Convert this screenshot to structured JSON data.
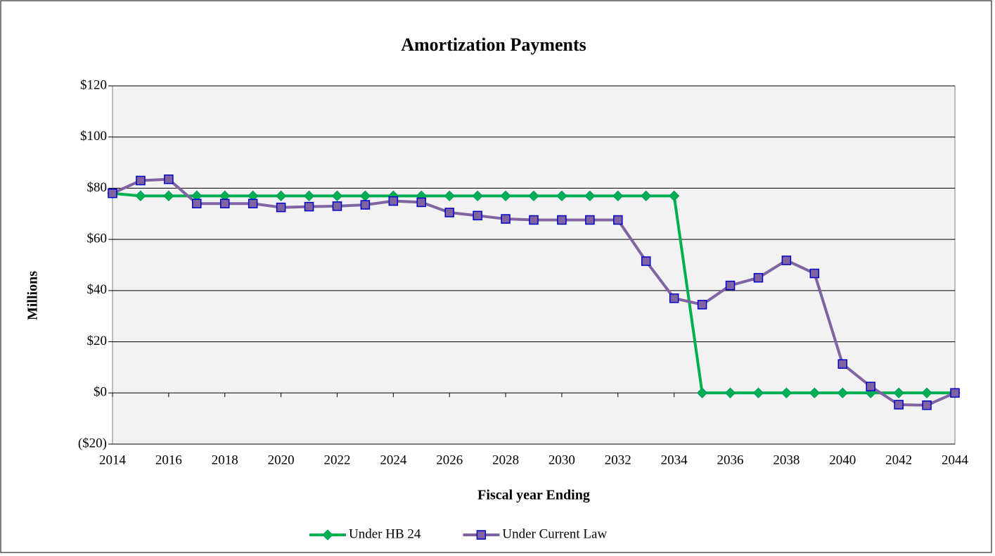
{
  "chart_data": {
    "type": "line",
    "title": "Amortization Payments",
    "xlabel": "Fiscal year Ending",
    "ylabel": "Millions",
    "x": [
      2014,
      2015,
      2016,
      2017,
      2018,
      2019,
      2020,
      2021,
      2022,
      2023,
      2024,
      2025,
      2026,
      2027,
      2028,
      2029,
      2030,
      2031,
      2032,
      2033,
      2034,
      2035,
      2036,
      2037,
      2038,
      2039,
      2040,
      2041,
      2042,
      2043,
      2044
    ],
    "series": [
      {
        "name": "Under HB 24",
        "color": "#00b050",
        "marker": "diamond",
        "values": [
          78,
          77,
          77,
          77,
          77,
          77,
          77,
          77,
          77,
          77,
          77,
          77,
          77,
          77,
          77,
          77,
          77,
          77,
          77,
          77,
          77,
          0,
          0,
          0,
          0,
          0,
          0,
          0,
          0,
          0,
          0
        ]
      },
      {
        "name": "Under Current Law",
        "color": "#8064a2",
        "marker": "square",
        "values": [
          78,
          83,
          83.5,
          74,
          74,
          74,
          72.5,
          72.8,
          73,
          73.5,
          75,
          74.5,
          70.5,
          69.3,
          68,
          67.6,
          67.6,
          67.6,
          67.6,
          51.5,
          37,
          34.5,
          42,
          45,
          51.8,
          46.7,
          11.3,
          2.5,
          -4.6,
          -4.8,
          0
        ]
      }
    ],
    "xlim": [
      2014,
      2044
    ],
    "xticks": [
      2014,
      2016,
      2018,
      2020,
      2022,
      2024,
      2026,
      2028,
      2030,
      2032,
      2034,
      2036,
      2038,
      2040,
      2042,
      2044
    ],
    "ylim": [
      -20,
      120
    ],
    "yticks": [
      {
        "value": -20,
        "label": "($20)"
      },
      {
        "value": 0,
        "label": "$0"
      },
      {
        "value": 20,
        "label": "$20"
      },
      {
        "value": 40,
        "label": "$40"
      },
      {
        "value": 60,
        "label": "$60"
      },
      {
        "value": 80,
        "label": "$80"
      },
      {
        "value": 100,
        "label": "$100"
      },
      {
        "value": 120,
        "label": "$120"
      }
    ],
    "grid": true,
    "legend": "bottom"
  }
}
